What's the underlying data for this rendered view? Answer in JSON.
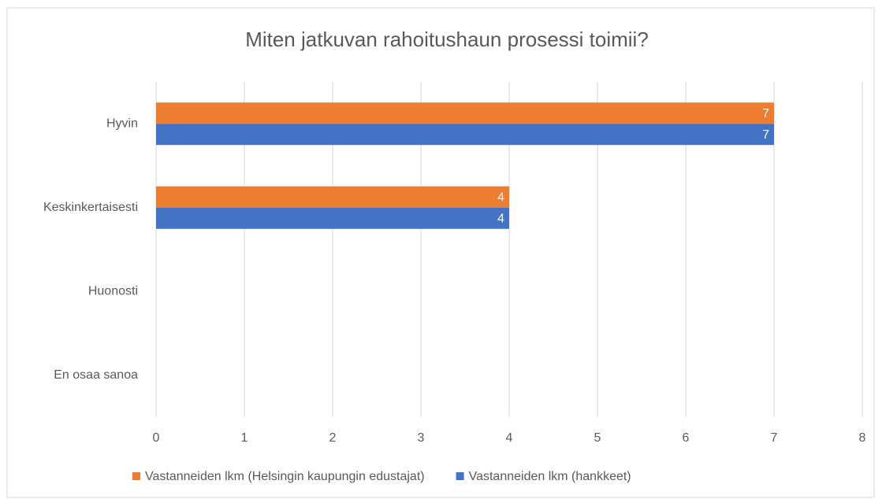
{
  "chart_data": {
    "type": "hbar",
    "title": "Miten jatkuvan rahoitushaun prosessi toimii?",
    "categories": [
      "Hyvin",
      "Keskinkertaisesti",
      "Huonosti",
      "En osaa sanoa"
    ],
    "series": [
      {
        "name": "Vastanneiden lkm (Helsingin kaupungin edustajat)",
        "color": "#ed7d31",
        "values": [
          7,
          4,
          null,
          null
        ]
      },
      {
        "name": "Vastanneiden lkm (hankkeet)",
        "color": "#4472c4",
        "values": [
          7,
          4,
          null,
          null
        ]
      }
    ],
    "xlim": [
      0,
      8
    ],
    "xticks": [
      0,
      1,
      2,
      3,
      4,
      5,
      6,
      7,
      8
    ],
    "grid": true,
    "legend": "bottom"
  }
}
